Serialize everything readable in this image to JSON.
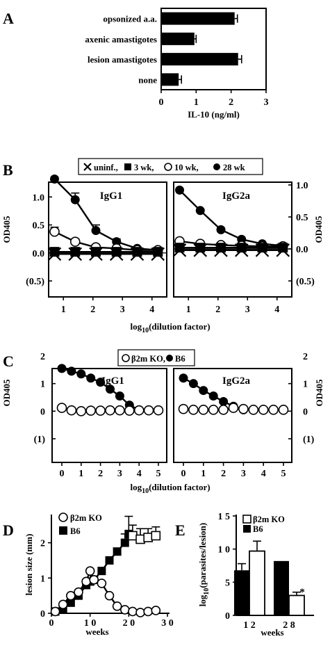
{
  "panels": {
    "A": "A",
    "B": "B",
    "C": "C",
    "D": "D",
    "E": "E"
  },
  "chart_data": [
    {
      "panel": "A",
      "type": "bar",
      "orientation": "horizontal",
      "categories": [
        "opsonized a.a.",
        "axenic amastigotes",
        "lesion amastigotes",
        "none"
      ],
      "values": [
        2.1,
        0.95,
        2.2,
        0.5
      ],
      "errors": [
        0.08,
        0.05,
        0.1,
        0.08
      ],
      "xlabel": "IL-10 (ng/ml)",
      "xlim": [
        0,
        3
      ],
      "xticks": [
        "0",
        "1",
        "2",
        "3"
      ]
    },
    {
      "panel": "B",
      "type": "line",
      "legend": [
        "uninf.,",
        "3 wk,",
        "10 wk,",
        "28 wk"
      ],
      "legend_placement": "top-center",
      "xlabel_main": "log",
      "xlabel_sub": "10",
      "xlabel_rest": "(dilution factor)",
      "xlim": [
        0.5,
        4.5
      ],
      "xticks": [
        "1",
        "2",
        "3",
        "4"
      ],
      "subplots": [
        {
          "title": "IgG1",
          "ylabel": "OD405",
          "ylim": [
            -0.5,
            1.5
          ],
          "yticks": [
            "(0.5)",
            "0.0",
            "0.5",
            "1.0",
            "1.5"
          ],
          "series": [
            {
              "name": "28 wk",
              "x": [
                0.7,
                1.4,
                2.1,
                2.8,
                3.5,
                4.2
              ],
              "y": [
                1.32,
                0.95,
                0.4,
                0.2,
                0.08,
                0.05
              ],
              "err": [
                0.03,
                0.12,
                0.1,
                0.05,
                0.03,
                0.03
              ]
            },
            {
              "name": "10 wk",
              "x": [
                0.7,
                1.4,
                2.1,
                2.8,
                3.5,
                4.2
              ],
              "y": [
                0.38,
                0.2,
                0.1,
                0.08,
                0.05,
                0.05
              ],
              "err": [
                0.08,
                0.05,
                0.05,
                0.03,
                0.02,
                0.02
              ]
            },
            {
              "name": "3 wk",
              "x": [
                0.7,
                1.4,
                2.1,
                2.8,
                3.5,
                4.2
              ],
              "y": [
                0.02,
                0.02,
                0.02,
                0.02,
                0.02,
                0.02
              ]
            },
            {
              "name": "uninf.",
              "x": [
                0.7,
                1.4,
                2.1,
                2.8,
                3.5,
                4.2
              ],
              "y": [
                -0.02,
                -0.02,
                -0.02,
                -0.02,
                -0.02,
                -0.02
              ]
            }
          ]
        },
        {
          "title": "IgG2a",
          "ylabel": "OD405",
          "ylim": [
            -0.5,
            1.1
          ],
          "yticks": [
            "(0.5)",
            "0.0",
            "0.5",
            "1.0"
          ],
          "series": [
            {
              "name": "28 wk",
              "x": [
                0.7,
                1.4,
                2.1,
                2.8,
                3.5,
                4.2
              ],
              "y": [
                0.92,
                0.6,
                0.3,
                0.15,
                0.08,
                0.05
              ]
            },
            {
              "name": "10 wk",
              "x": [
                0.7,
                1.4,
                2.1,
                2.8,
                3.5,
                4.2
              ],
              "y": [
                0.12,
                0.08,
                0.06,
                0.05,
                0.04,
                0.04
              ]
            },
            {
              "name": "3 wk",
              "x": [
                0.7,
                1.4,
                2.1,
                2.8,
                3.5,
                4.2
              ],
              "y": [
                0.02,
                0.02,
                0.02,
                0.02,
                0.02,
                0.02
              ]
            },
            {
              "name": "uninf.",
              "x": [
                0.7,
                1.4,
                2.1,
                2.8,
                3.5,
                4.2
              ],
              "y": [
                -0.02,
                -0.02,
                -0.02,
                -0.02,
                -0.02,
                -0.02
              ]
            }
          ]
        }
      ]
    },
    {
      "panel": "C",
      "type": "line",
      "legend": [
        "β2m KO,",
        "B6"
      ],
      "legend_placement": "top-center",
      "xlabel_main": "log",
      "xlabel_sub": "10",
      "xlabel_rest": "(dilution factor)",
      "xlim": [
        0,
        5
      ],
      "xticks": [
        "0",
        "1",
        "2",
        "3",
        "4",
        "5"
      ],
      "ylim": [
        -1,
        2
      ],
      "yticks": [
        "(1)",
        "0",
        "1",
        "2"
      ],
      "subplots": [
        {
          "title": "IgG1",
          "ylabel": "OD405",
          "series": [
            {
              "name": "B6",
              "x": [
                0,
                0.5,
                1,
                1.5,
                2,
                2.5,
                3,
                3.5,
                4
              ],
              "y": [
                1.55,
                1.45,
                1.35,
                1.2,
                1.05,
                0.8,
                0.55,
                0.22,
                0.05
              ]
            },
            {
              "name": "β2m KO",
              "x": [
                0,
                0.5,
                1,
                1.5,
                2,
                2.5,
                3,
                3.5,
                4,
                4.5,
                5
              ],
              "y": [
                0.12,
                0.03,
                0.0,
                0.02,
                0.02,
                0.03,
                0.03,
                0.02,
                0.03,
                0.03,
                0.03
              ]
            }
          ]
        },
        {
          "title": "IgG2a",
          "ylabel": "OD405",
          "series": [
            {
              "name": "B6",
              "x": [
                0,
                0.5,
                1,
                1.5,
                2,
                2.5,
                3
              ],
              "y": [
                1.2,
                1.0,
                0.75,
                0.55,
                0.35,
                0.18,
                0.05
              ]
            },
            {
              "name": "β2m KO",
              "x": [
                0,
                0.5,
                1,
                1.5,
                2,
                2.5,
                3,
                3.5,
                4,
                4.5,
                5
              ],
              "y": [
                0.08,
                0.05,
                0.05,
                0.05,
                0.05,
                0.12,
                0.08,
                0.05,
                0.05,
                0.05,
                0.05
              ]
            }
          ]
        }
      ]
    },
    {
      "panel": "D",
      "type": "line",
      "legend": [
        "β2m KO",
        "B6"
      ],
      "legend_placement": "top-left",
      "xlabel": "weeks",
      "ylabel": "lesion size (mm)",
      "xlim": [
        0,
        30
      ],
      "xticks": [
        "0",
        "1 0",
        "2 0",
        "3 0"
      ],
      "ylim": [
        0,
        2.8
      ],
      "yticks": [
        "0",
        "1",
        "2"
      ],
      "series": [
        {
          "name": "β2m KO",
          "x": [
            1,
            3,
            5,
            7,
            9,
            10,
            11,
            13,
            15,
            17,
            19,
            21,
            23,
            25,
            27
          ],
          "y": [
            0.05,
            0.25,
            0.5,
            0.6,
            0.9,
            1.2,
            0.95,
            0.85,
            0.5,
            0.2,
            0.1,
            0.05,
            0.02,
            0.05,
            0.08
          ]
        },
        {
          "name": "B6",
          "x": [
            1,
            3,
            5,
            7,
            9,
            10,
            11,
            13,
            15,
            17,
            19,
            20,
            21,
            23,
            25,
            27
          ],
          "y": [
            0.05,
            0.1,
            0.3,
            0.5,
            0.8,
            0.9,
            0.95,
            1.2,
            1.5,
            1.75,
            2.0,
            2.25,
            2.2,
            2.1,
            2.15,
            2.2
          ],
          "err": [
            0,
            0,
            0,
            0,
            0,
            0,
            0,
            0,
            0.1,
            0.1,
            0.25,
            0.5,
            0.3,
            0.3,
            0.25,
            0.25
          ]
        }
      ]
    },
    {
      "panel": "E",
      "type": "bar",
      "legend": [
        "β2m KO",
        "B6"
      ],
      "legend_placement": "top-left",
      "xlabel": "weeks",
      "ylabel": "log10(parasites/lesion)",
      "ylabel_main": "log",
      "ylabel_sub": "10",
      "ylabel_rest": "(parasites/lesion)",
      "categories": [
        "1 2",
        "2 8"
      ],
      "ylim": [
        0,
        15
      ],
      "yticks": [
        "0",
        "5",
        "1 0",
        "1 5"
      ],
      "series": [
        {
          "name": "B6",
          "values": [
            6.8,
            8.2
          ],
          "err": [
            1.0,
            0
          ]
        },
        {
          "name": "β2m KO",
          "values": [
            9.7,
            3.0
          ],
          "err": [
            1.5,
            0.5
          ]
        }
      ],
      "annotation": "*"
    }
  ]
}
